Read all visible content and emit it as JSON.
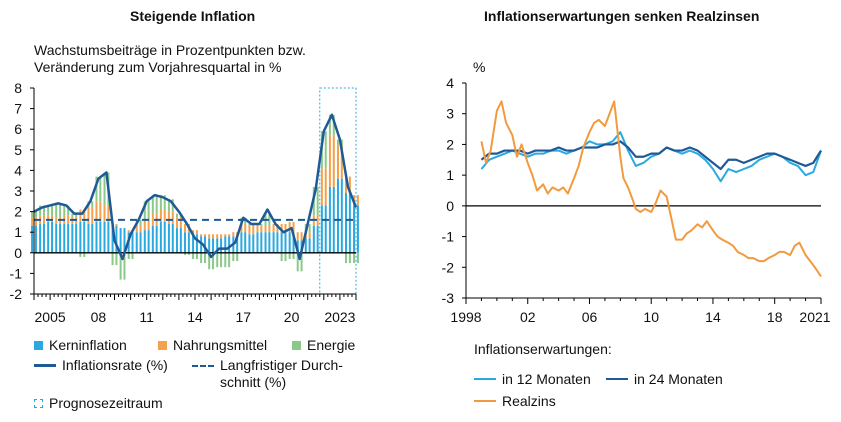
{
  "chart_data": [
    {
      "type": "bar",
      "title": "Steigende Inflation",
      "subtitle": "Wachstumsbeiträge in Prozentpunkten bzw. Veränderung zum Vorjahresquartal in %",
      "ylim": [
        -2,
        8
      ],
      "yticks": [
        "8",
        "7",
        "6",
        "5",
        "4",
        "3",
        "2",
        "1",
        "0",
        "-1",
        "-2"
      ],
      "xticks": [
        "2005",
        "08",
        "11",
        "14",
        "17",
        "20",
        "2023"
      ],
      "x_start": 2004.0,
      "x_end": 2024.0,
      "colors": {
        "kern": "#2aa9e0",
        "nahrung": "#f5a04a",
        "energie": "#8ac98a",
        "rate": "#1f5a96",
        "avg": "#1f5a96",
        "prognose": "#2aa9e0"
      },
      "series_bars": [
        "Kerninflation",
        "Nahrungsmittel",
        "Energie"
      ],
      "inflation_rate": {
        "name": "Inflationsrate (%)",
        "x": [
          2004.0,
          2004.5,
          2005.0,
          2005.5,
          2006.0,
          2006.5,
          2007.0,
          2007.5,
          2008.0,
          2008.5,
          2009.0,
          2009.5,
          2010.0,
          2010.5,
          2011.0,
          2011.5,
          2012.0,
          2012.5,
          2013.0,
          2013.5,
          2014.0,
          2014.5,
          2015.0,
          2015.5,
          2016.0,
          2016.5,
          2017.0,
          2017.5,
          2018.0,
          2018.5,
          2019.0,
          2019.5,
          2020.0,
          2020.5,
          2021.0,
          2021.5,
          2022.0,
          2022.5,
          2023.0,
          2023.5,
          2024.0
        ],
        "y": [
          2.0,
          2.2,
          2.3,
          2.4,
          2.3,
          1.9,
          1.9,
          2.5,
          3.6,
          3.9,
          0.6,
          -0.3,
          0.9,
          1.6,
          2.5,
          2.8,
          2.7,
          2.5,
          2.0,
          1.4,
          0.7,
          0.4,
          -0.2,
          0.2,
          0.2,
          0.5,
          1.7,
          1.4,
          1.4,
          2.1,
          1.4,
          1.0,
          1.2,
          -0.3,
          1.4,
          3.1,
          5.9,
          6.7,
          5.5,
          3.2,
          2.2
        ]
      },
      "kerninflation": [
        1.3,
        1.4,
        1.5,
        1.4,
        1.4,
        1.4,
        1.5,
        1.4,
        1.5,
        1.5,
        1.3,
        1.2,
        1.0,
        1.0,
        1.1,
        1.3,
        1.5,
        1.4,
        1.2,
        1.0,
        0.9,
        0.8,
        0.7,
        0.7,
        0.8,
        0.8,
        1.0,
        0.9,
        1.0,
        1.0,
        1.0,
        1.0,
        1.0,
        0.6,
        0.7,
        1.3,
        2.3,
        3.2,
        3.6,
        2.9,
        2.3
      ],
      "nahrungsmittel": [
        0.4,
        0.4,
        0.3,
        0.3,
        0.4,
        0.3,
        0.6,
        0.8,
        1.0,
        0.8,
        0.1,
        -0.2,
        0.1,
        0.3,
        0.5,
        0.6,
        0.6,
        0.6,
        0.5,
        0.4,
        0.2,
        0.1,
        0.2,
        0.2,
        0.1,
        0.2,
        0.4,
        0.4,
        0.3,
        0.3,
        0.4,
        0.4,
        0.5,
        0.4,
        0.3,
        0.5,
        1.8,
        2.5,
        1.6,
        0.8,
        0.5
      ],
      "energie": [
        0.3,
        0.5,
        0.5,
        0.7,
        0.5,
        0.2,
        -0.2,
        0.3,
        1.2,
        1.6,
        -0.6,
        -1.1,
        -0.3,
        0.3,
        0.9,
        0.9,
        0.7,
        0.6,
        0.2,
        -0.1,
        -0.3,
        -0.5,
        -0.8,
        -0.7,
        -0.7,
        -0.4,
        0.3,
        0.1,
        0.1,
        0.6,
        0.0,
        -0.4,
        -0.3,
        -0.9,
        0.4,
        1.4,
        1.8,
        1.0,
        0.3,
        -0.5,
        -0.5
      ],
      "langfristiger_durchschnitt": {
        "name": "Langfristiger Durchschnitt (%)",
        "value": 1.6
      },
      "prognosezeitraum": {
        "name": "Prognosezeitraum",
        "from": 2021.75,
        "to": 2024.0
      }
    },
    {
      "type": "line",
      "title": "Inflationserwartungen senken Realzinsen",
      "ylabel": "%",
      "ylim": [
        -3,
        4
      ],
      "yticks": [
        "4",
        "3",
        "2",
        "1",
        "0",
        "-1",
        "-2",
        "-3"
      ],
      "xticks": [
        "1998",
        "02",
        "06",
        "10",
        "14",
        "18",
        "2021"
      ],
      "x_start": 1998.0,
      "x_end": 2021.0,
      "series": [
        {
          "name": "in 12 Monaten",
          "color": "#2aa9e0",
          "x": [
            1999.0,
            1999.5,
            2000.0,
            2000.5,
            2001.0,
            2001.5,
            2002.0,
            2002.5,
            2003.0,
            2003.5,
            2004.0,
            2004.5,
            2005.0,
            2005.5,
            2006.0,
            2006.5,
            2007.0,
            2007.5,
            2008.0,
            2008.5,
            2009.0,
            2009.5,
            2010.0,
            2010.5,
            2011.0,
            2011.5,
            2012.0,
            2012.5,
            2013.0,
            2013.5,
            2014.0,
            2014.5,
            2015.0,
            2015.5,
            2016.0,
            2016.5,
            2017.0,
            2017.5,
            2018.0,
            2018.5,
            2019.0,
            2019.5,
            2020.0,
            2020.5,
            2021.0
          ],
          "y": [
            1.2,
            1.5,
            1.6,
            1.7,
            1.8,
            1.7,
            1.6,
            1.7,
            1.7,
            1.8,
            1.8,
            1.7,
            1.8,
            1.9,
            2.1,
            2.0,
            2.0,
            2.1,
            2.4,
            1.8,
            1.3,
            1.4,
            1.6,
            1.7,
            1.9,
            1.8,
            1.7,
            1.8,
            1.7,
            1.5,
            1.2,
            0.8,
            1.2,
            1.1,
            1.2,
            1.3,
            1.5,
            1.6,
            1.7,
            1.6,
            1.4,
            1.3,
            1.0,
            1.1,
            1.8
          ]
        },
        {
          "name": "in 24 Monaten",
          "color": "#1f5a96",
          "x": [
            1999.0,
            1999.5,
            2000.0,
            2000.5,
            2001.0,
            2001.5,
            2002.0,
            2002.5,
            2003.0,
            2003.5,
            2004.0,
            2004.5,
            2005.0,
            2005.5,
            2006.0,
            2006.5,
            2007.0,
            2007.5,
            2008.0,
            2008.5,
            2009.0,
            2009.5,
            2010.0,
            2010.5,
            2011.0,
            2011.5,
            2012.0,
            2012.5,
            2013.0,
            2013.5,
            2014.0,
            2014.5,
            2015.0,
            2015.5,
            2016.0,
            2016.5,
            2017.0,
            2017.5,
            2018.0,
            2018.5,
            2019.0,
            2019.5,
            2020.0,
            2020.5,
            2021.0
          ],
          "y": [
            1.5,
            1.7,
            1.7,
            1.8,
            1.8,
            1.8,
            1.7,
            1.8,
            1.8,
            1.8,
            1.9,
            1.8,
            1.8,
            1.9,
            1.9,
            1.9,
            2.0,
            2.0,
            2.1,
            1.9,
            1.6,
            1.6,
            1.7,
            1.7,
            1.9,
            1.8,
            1.8,
            1.9,
            1.8,
            1.6,
            1.4,
            1.2,
            1.5,
            1.5,
            1.4,
            1.5,
            1.6,
            1.7,
            1.7,
            1.6,
            1.5,
            1.4,
            1.3,
            1.4,
            1.8
          ]
        },
        {
          "name": "Realzins",
          "color": "#f29a3f",
          "x": [
            1999.0,
            1999.3,
            1999.6,
            2000.0,
            2000.3,
            2000.6,
            2001.0,
            2001.3,
            2001.6,
            2002.0,
            2002.3,
            2002.6,
            2003.0,
            2003.3,
            2003.6,
            2004.0,
            2004.3,
            2004.6,
            2005.0,
            2005.3,
            2005.6,
            2006.0,
            2006.3,
            2006.6,
            2007.0,
            2007.3,
            2007.6,
            2008.0,
            2008.2,
            2008.5,
            2008.8,
            2009.0,
            2009.3,
            2009.6,
            2010.0,
            2010.3,
            2010.6,
            2011.0,
            2011.3,
            2011.6,
            2012.0,
            2012.3,
            2012.6,
            2013.0,
            2013.3,
            2013.6,
            2014.0,
            2014.3,
            2014.6,
            2015.0,
            2015.3,
            2015.6,
            2016.0,
            2016.3,
            2016.6,
            2017.0,
            2017.3,
            2017.6,
            2018.0,
            2018.3,
            2018.6,
            2019.0,
            2019.3,
            2019.6,
            2020.0,
            2020.3,
            2020.6,
            2021.0
          ],
          "y": [
            2.1,
            1.4,
            1.8,
            3.1,
            3.4,
            2.7,
            2.3,
            1.6,
            2.0,
            1.4,
            1.0,
            0.5,
            0.7,
            0.4,
            0.6,
            0.5,
            0.6,
            0.4,
            0.9,
            1.3,
            1.9,
            2.4,
            2.7,
            2.8,
            2.6,
            3.0,
            3.4,
            1.6,
            0.9,
            0.6,
            0.2,
            -0.1,
            -0.2,
            -0.1,
            -0.2,
            0.1,
            0.5,
            0.3,
            -0.4,
            -1.1,
            -1.1,
            -0.9,
            -0.8,
            -0.6,
            -0.7,
            -0.5,
            -0.8,
            -1.0,
            -1.1,
            -1.2,
            -1.3,
            -1.5,
            -1.6,
            -1.7,
            -1.7,
            -1.8,
            -1.8,
            -1.7,
            -1.6,
            -1.5,
            -1.5,
            -1.6,
            -1.3,
            -1.2,
            -1.6,
            -1.8,
            -2.0,
            -2.3
          ]
        }
      ]
    }
  ],
  "legend_left": {
    "kern": "Kerninflation",
    "nahrung": "Nahrungsmittel",
    "energie": "Energie",
    "rate": "Inflationsrate (%)",
    "avg_line1": "Langfristiger Durch-",
    "avg_line2": "schnitt (%)",
    "prognose": "Prognosezeitraum"
  },
  "legend_right": {
    "heading": "Inflationserwartungen:",
    "e12": "in 12 Monaten",
    "e24": "in 24 Monaten",
    "real": "Realzins"
  }
}
